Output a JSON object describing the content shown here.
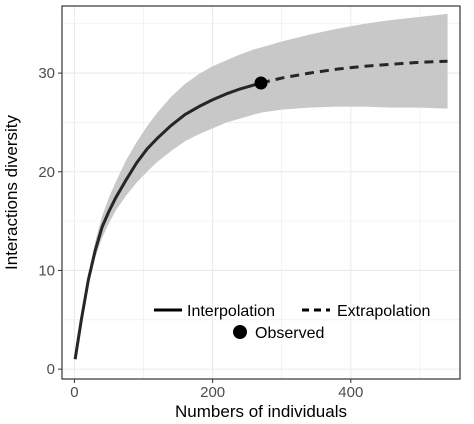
{
  "chart_data": {
    "type": "line",
    "xlabel": "Numbers of individuals",
    "ylabel": "Interactions diversity",
    "xlim": [
      -18,
      558
    ],
    "ylim": [
      -1,
      36.8
    ],
    "x_ticks": [
      0,
      200,
      400
    ],
    "y_ticks": [
      0,
      10,
      20,
      30
    ],
    "grid": true,
    "legend_position": "bottom-right",
    "interpolation": {
      "name": "Interpolation",
      "x": [
        1,
        10,
        20,
        30,
        40,
        50,
        60,
        75,
        90,
        105,
        120,
        140,
        160,
        180,
        200,
        220,
        240,
        260,
        270
      ],
      "y": [
        1.0,
        5.0,
        9.0,
        12.0,
        14.4,
        16.0,
        17.4,
        19.2,
        20.9,
        22.3,
        23.4,
        24.7,
        25.8,
        26.6,
        27.3,
        27.9,
        28.4,
        28.8,
        29.0
      ],
      "lower": [
        1.0,
        4.8,
        8.4,
        11.3,
        13.3,
        14.8,
        16.1,
        17.6,
        18.9,
        20.0,
        21.0,
        22.1,
        23.1,
        23.8,
        24.4,
        25.0,
        25.4,
        25.8,
        26.0
      ],
      "upper": [
        1.0,
        5.2,
        9.6,
        12.9,
        15.5,
        17.4,
        19.0,
        21.2,
        23.0,
        24.6,
        26.0,
        27.6,
        28.9,
        29.9,
        30.7,
        31.3,
        31.9,
        32.4,
        32.6
      ]
    },
    "extrapolation": {
      "name": "Extrapolation",
      "x": [
        270,
        300,
        340,
        380,
        420,
        460,
        500,
        540
      ],
      "y": [
        29.0,
        29.5,
        30.0,
        30.4,
        30.7,
        30.9,
        31.1,
        31.2
      ],
      "lower": [
        26.0,
        26.3,
        26.5,
        26.6,
        26.6,
        26.5,
        26.5,
        26.4
      ],
      "upper": [
        32.6,
        33.2,
        33.9,
        34.5,
        35.0,
        35.4,
        35.7,
        36.0
      ]
    },
    "observed": {
      "name": "Observed",
      "x": 270,
      "y": 29.0
    },
    "colors": {
      "line": "#262626",
      "band": "#c8c8c8",
      "grid": "#ebebeb",
      "border": "#333333"
    }
  }
}
